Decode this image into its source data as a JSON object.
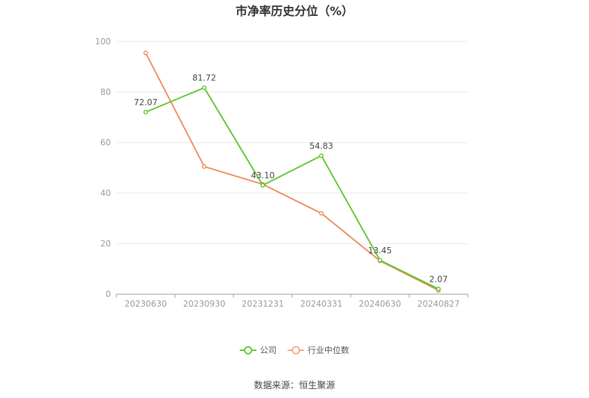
{
  "title": "市净率历史分位（%）",
  "source": "数据来源：恒生聚源",
  "colors": {
    "company": "#5cc72c",
    "industry": "#f08a5d",
    "grid": "#e6e6e6",
    "axis": "#999999"
  },
  "chart_data": {
    "type": "line",
    "title": "市净率历史分位（%）",
    "categories": [
      "20230630",
      "20230930",
      "20231231",
      "20240331",
      "20240630",
      "20240827"
    ],
    "ylim": [
      0,
      100
    ],
    "yticks": [
      0,
      20,
      40,
      60,
      80,
      100
    ],
    "grid": true,
    "legend_position": "bottom",
    "series": [
      {
        "name": "公司",
        "values": [
          72.07,
          81.72,
          43.1,
          54.83,
          13.45,
          2.07
        ],
        "labels": [
          "72.07",
          "81.72",
          "43.10",
          "54.83",
          "13.45",
          "2.07"
        ],
        "color": "#5cc72c"
      },
      {
        "name": "行业中位数",
        "values": [
          95.5,
          50.5,
          43.5,
          32.0,
          13.2,
          1.5
        ],
        "color": "#f08a5d"
      }
    ]
  }
}
